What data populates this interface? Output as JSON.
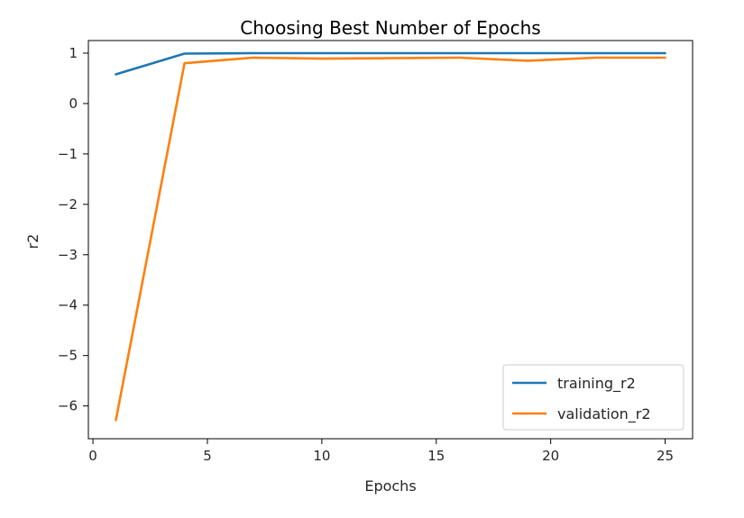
{
  "chart_data": {
    "type": "line",
    "title": "Choosing Best Number of Epochs",
    "xlabel": "Epochs",
    "ylabel": "r2",
    "xlim": [
      -0.2,
      26.2
    ],
    "ylim": [
      -6.65,
      1.25
    ],
    "x_ticks": [
      0,
      5,
      10,
      15,
      20,
      25
    ],
    "x_tick_labels": [
      "0",
      "5",
      "10",
      "15",
      "20",
      "25"
    ],
    "y_ticks": [
      1,
      0,
      -1,
      -2,
      -3,
      -4,
      -5,
      -6
    ],
    "y_tick_labels": [
      "1",
      "0",
      "−1",
      "−2",
      "−3",
      "−4",
      "−5",
      "−6"
    ],
    "grid": false,
    "legend_position": "lower-right",
    "x": [
      1,
      4,
      7,
      10,
      13,
      16,
      19,
      22,
      25
    ],
    "series": [
      {
        "name": "training_r2",
        "color": "#1f77b4",
        "values": [
          0.58,
          0.99,
          1.0,
          1.0,
          1.0,
          1.0,
          1.0,
          1.0,
          1.0
        ]
      },
      {
        "name": "validation_r2",
        "color": "#ff7f0e",
        "values": [
          -6.28,
          0.8,
          0.91,
          0.89,
          0.9,
          0.91,
          0.85,
          0.91,
          0.91
        ]
      }
    ]
  }
}
